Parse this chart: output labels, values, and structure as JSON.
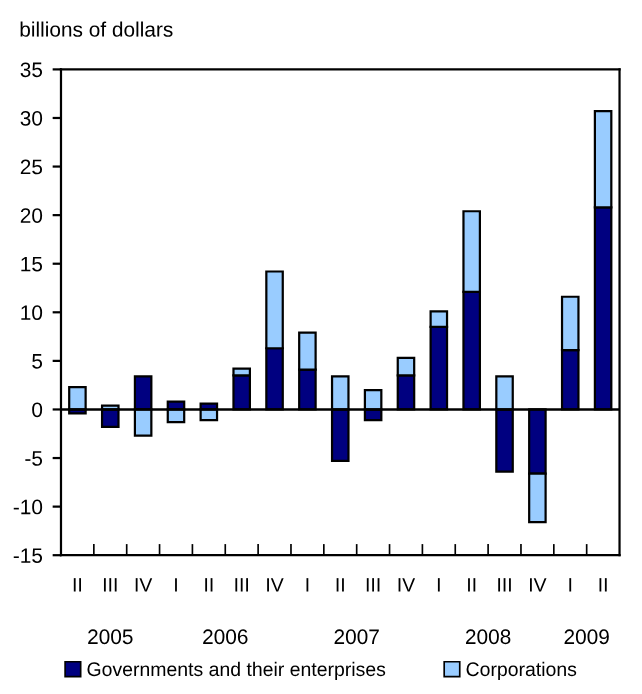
{
  "chart_data": {
    "type": "bar",
    "stacked": true,
    "ylabel": "billions of dollars",
    "categories": [
      "II",
      "III",
      "IV",
      "I",
      "II",
      "III",
      "IV",
      "I",
      "II",
      "III",
      "IV",
      "I",
      "II",
      "III",
      "IV",
      "I",
      "II"
    ],
    "series": [
      {
        "name": "Governments and their enterprises",
        "color": "#000080",
        "values": [
          -0.4,
          -1.8,
          3.4,
          0.8,
          0.6,
          3.5,
          6.3,
          4.1,
          -5.3,
          -1.1,
          3.5,
          8.5,
          12.1,
          -6.4,
          -6.6,
          6.1,
          20.8
        ]
      },
      {
        "name": "Corporations",
        "color": "#99ccff",
        "values": [
          2.3,
          0.4,
          -2.7,
          -1.3,
          -1.1,
          0.7,
          7.9,
          3.8,
          3.4,
          2.0,
          1.8,
          1.6,
          8.3,
          3.4,
          -5.0,
          5.5,
          9.9
        ]
      }
    ],
    "annotations": [
      "2005",
      "2006",
      "2007",
      "2008",
      "2009"
    ],
    "ylim": [
      -15,
      35
    ],
    "yticks": [
      -15,
      -10,
      -5,
      0,
      5,
      10,
      15,
      20,
      25,
      30,
      35
    ],
    "legend": "bottom"
  }
}
